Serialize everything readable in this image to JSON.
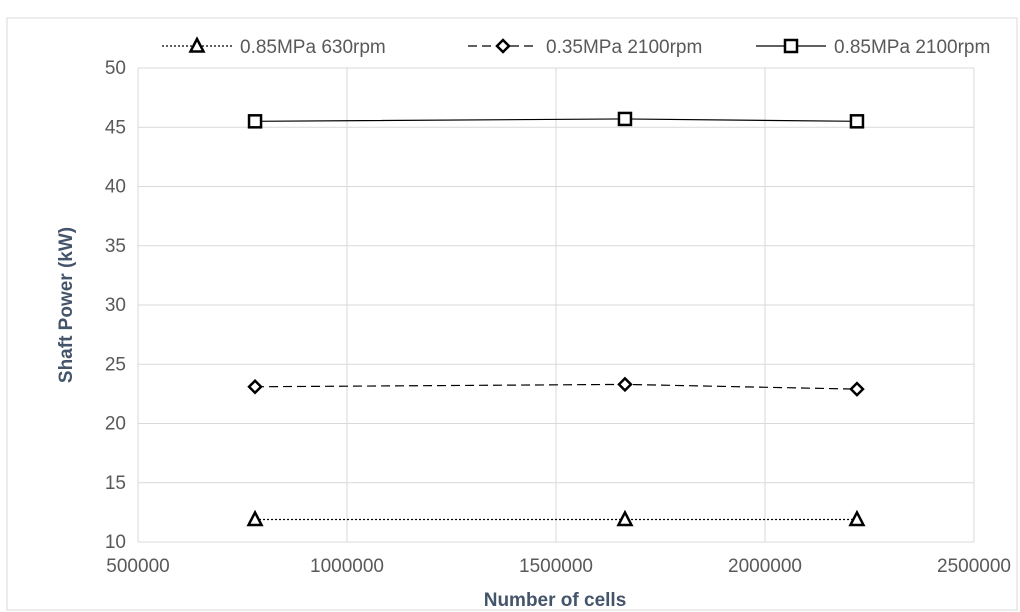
{
  "chart_data": {
    "type": "line",
    "title": "",
    "xlabel": "Number of cells",
    "ylabel": "Shaft Power (kW)",
    "xlim": [
      500000,
      2500000
    ],
    "ylim": [
      10,
      50
    ],
    "x_ticks": [
      500000,
      1000000,
      1500000,
      2000000,
      2500000
    ],
    "y_ticks": [
      10,
      15,
      20,
      25,
      30,
      35,
      40,
      45,
      50
    ],
    "grid": true,
    "legend_position": "top",
    "series": [
      {
        "name": "0.85MPa 630rpm",
        "marker": "triangle",
        "line_style": "dotted",
        "color": "#000000",
        "points": [
          {
            "x": 780000,
            "y": 11.9
          },
          {
            "x": 1665000,
            "y": 11.9
          },
          {
            "x": 2220000,
            "y": 11.9
          }
        ]
      },
      {
        "name": "0.35MPa 2100rpm",
        "marker": "diamond",
        "line_style": "dashed",
        "color": "#000000",
        "points": [
          {
            "x": 780000,
            "y": 23.1
          },
          {
            "x": 1665000,
            "y": 23.3
          },
          {
            "x": 2220000,
            "y": 22.9
          }
        ]
      },
      {
        "name": "0.85MPa 2100rpm",
        "marker": "square",
        "line_style": "solid",
        "color": "#000000",
        "points": [
          {
            "x": 780000,
            "y": 45.5
          },
          {
            "x": 1665000,
            "y": 45.7
          },
          {
            "x": 2220000,
            "y": 45.5
          }
        ]
      }
    ]
  }
}
